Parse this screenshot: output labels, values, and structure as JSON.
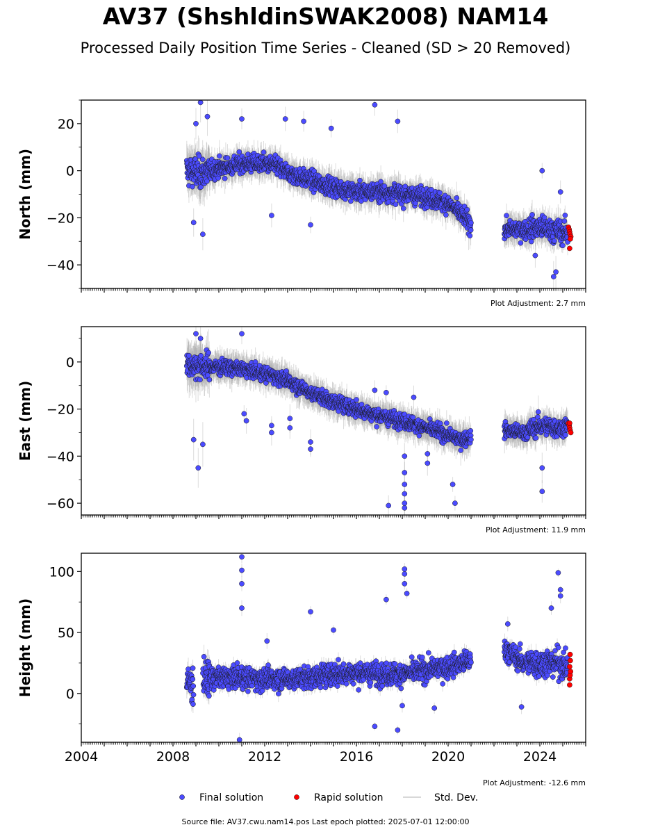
{
  "page": {
    "title": "AV37 (ShshldinSWAK2008) NAM14",
    "subtitle": "Processed Daily Position Time Series - Cleaned (SD > 20 Removed)",
    "footer": "Source file: AV37.cwu.nam14.pos  Last epoch plotted: 2025-07-01 12:00:00"
  },
  "legend": {
    "placement": "bottom-center",
    "items": [
      {
        "label": "Final solution",
        "color": "#4b4bff",
        "kind": "marker"
      },
      {
        "label": "Rapid solution",
        "color": "#ff0000",
        "kind": "marker"
      },
      {
        "label": "Std. Dev.",
        "color": "#cccccc",
        "kind": "line"
      }
    ]
  },
  "chart_data": [
    {
      "type": "scatter",
      "ylabel": "North (mm)",
      "annotation": "Plot Adjustment: 2.7 mm",
      "xlim": [
        2004,
        2026
      ],
      "ylim": [
        -50,
        30
      ],
      "yticks": [
        -40,
        -20,
        0,
        20
      ],
      "x_tick_labels": [],
      "trend": [
        [
          2008.6,
          0
        ],
        [
          2009.3,
          -1
        ],
        [
          2010,
          1
        ],
        [
          2011,
          3
        ],
        [
          2012,
          3
        ],
        [
          2012.5,
          2
        ],
        [
          2013,
          -1
        ],
        [
          2014,
          -4
        ],
        [
          2015,
          -7
        ],
        [
          2016,
          -9
        ],
        [
          2017,
          -9
        ],
        [
          2018,
          -10
        ],
        [
          2019,
          -11
        ],
        [
          2020,
          -14
        ],
        [
          2020.5,
          -18
        ],
        [
          2021,
          -23
        ],
        [
          2022.5,
          -25
        ],
        [
          2023.3,
          -25
        ],
        [
          2024,
          -24
        ],
        [
          2024.9,
          -26
        ],
        [
          2025.4,
          -27
        ]
      ],
      "noise": 3.2,
      "gaps": [
        [
          2021.0,
          2022.45
        ]
      ],
      "outliers": [
        [
          2009.0,
          20
        ],
        [
          2009.2,
          29
        ],
        [
          2009.3,
          -27
        ],
        [
          2009.5,
          23
        ],
        [
          2011.0,
          22
        ],
        [
          2012.9,
          22
        ],
        [
          2013.7,
          21
        ],
        [
          2014.9,
          18
        ],
        [
          2016.8,
          28
        ],
        [
          2017.8,
          21
        ],
        [
          2012.3,
          -19
        ],
        [
          2014.0,
          -23
        ],
        [
          2008.9,
          -22
        ],
        [
          2024.1,
          0
        ],
        [
          2024.9,
          -9
        ],
        [
          2023.8,
          -36
        ],
        [
          2024.6,
          -45
        ],
        [
          2024.7,
          -43
        ]
      ],
      "rapid": [
        [
          2025.25,
          -24
        ],
        [
          2025.28,
          -25
        ],
        [
          2025.3,
          -26
        ],
        [
          2025.32,
          -27
        ],
        [
          2025.35,
          -28
        ],
        [
          2025.3,
          -33
        ],
        [
          2025.33,
          -29
        ]
      ]
    },
    {
      "type": "scatter",
      "ylabel": "East (mm)",
      "annotation": "Plot Adjustment: 11.9 mm",
      "xlim": [
        2004,
        2026
      ],
      "ylim": [
        -65,
        15
      ],
      "yticks": [
        -60,
        -40,
        -20,
        0
      ],
      "x_tick_labels": [],
      "trend": [
        [
          2008.6,
          -1
        ],
        [
          2009.3,
          -2
        ],
        [
          2010,
          -2
        ],
        [
          2011,
          -3
        ],
        [
          2012,
          -5
        ],
        [
          2012.5,
          -6
        ],
        [
          2013,
          -8
        ],
        [
          2014,
          -13
        ],
        [
          2015,
          -17
        ],
        [
          2016,
          -20
        ],
        [
          2017,
          -23
        ],
        [
          2018,
          -25
        ],
        [
          2019,
          -28
        ],
        [
          2020,
          -31
        ],
        [
          2020.5,
          -33
        ],
        [
          2021,
          -32
        ],
        [
          2022.5,
          -29
        ],
        [
          2023.3,
          -30
        ],
        [
          2024,
          -27
        ],
        [
          2024.9,
          -28
        ],
        [
          2025.4,
          -27
        ]
      ],
      "noise": 2.6,
      "gaps": [
        [
          2021.0,
          2022.45
        ]
      ],
      "outliers": [
        [
          2009.0,
          12
        ],
        [
          2009.2,
          10
        ],
        [
          2011.0,
          12
        ],
        [
          2008.9,
          -33
        ],
        [
          2009.1,
          -45
        ],
        [
          2009.3,
          -35
        ],
        [
          2011.1,
          -22
        ],
        [
          2011.2,
          -25
        ],
        [
          2012.3,
          -27
        ],
        [
          2012.3,
          -30
        ],
        [
          2013.1,
          -24
        ],
        [
          2013.1,
          -28
        ],
        [
          2014.0,
          -34
        ],
        [
          2014.0,
          -37
        ],
        [
          2017.4,
          -61
        ],
        [
          2018.1,
          -47
        ],
        [
          2018.1,
          -52
        ],
        [
          2018.1,
          -56
        ],
        [
          2018.1,
          -60
        ],
        [
          2018.1,
          -62
        ],
        [
          2018.1,
          -40
        ],
        [
          2019.1,
          -39
        ],
        [
          2019.1,
          -43
        ],
        [
          2020.2,
          -52
        ],
        [
          2020.3,
          -60
        ],
        [
          2024.1,
          -45
        ],
        [
          2024.1,
          -55
        ],
        [
          2016.8,
          -12
        ],
        [
          2017.3,
          -13
        ],
        [
          2018.5,
          -15
        ]
      ],
      "rapid": [
        [
          2025.25,
          -26
        ],
        [
          2025.28,
          -27
        ],
        [
          2025.3,
          -28
        ],
        [
          2025.32,
          -29
        ],
        [
          2025.35,
          -30
        ],
        [
          2025.3,
          -26
        ]
      ]
    },
    {
      "type": "scatter",
      "ylabel": "Height (mm)",
      "annotation": "Plot Adjustment: -12.6 mm",
      "xlim": [
        2004,
        2026
      ],
      "ylim": [
        -40,
        115
      ],
      "yticks": [
        0,
        50,
        100
      ],
      "x_tick_labels": [
        "2004",
        "2008",
        "2012",
        "2016",
        "2020",
        "2024"
      ],
      "trend": [
        [
          2008.6,
          8
        ],
        [
          2009.3,
          12
        ],
        [
          2010,
          13
        ],
        [
          2011,
          13
        ],
        [
          2012,
          12
        ],
        [
          2013,
          12
        ],
        [
          2014,
          13
        ],
        [
          2015,
          16
        ],
        [
          2016,
          17
        ],
        [
          2017,
          16
        ],
        [
          2018,
          16
        ],
        [
          2019,
          19
        ],
        [
          2020,
          22
        ],
        [
          2021,
          27
        ],
        [
          2022.5,
          36
        ],
        [
          2023.3,
          25
        ],
        [
          2024,
          25
        ],
        [
          2024.9,
          25
        ],
        [
          2025.4,
          18
        ]
      ],
      "noise": 7.5,
      "gaps": [
        [
          2008.9,
          2009.3
        ],
        [
          2021.0,
          2022.45
        ]
      ],
      "outliers": [
        [
          2011.0,
          112
        ],
        [
          2011.0,
          101
        ],
        [
          2011.0,
          90
        ],
        [
          2011.0,
          70
        ],
        [
          2010.9,
          -38
        ],
        [
          2014.0,
          67
        ],
        [
          2016.8,
          -27
        ],
        [
          2017.3,
          77
        ],
        [
          2017.8,
          -30
        ],
        [
          2018.1,
          102
        ],
        [
          2018.1,
          98
        ],
        [
          2018.1,
          90
        ],
        [
          2018.2,
          82
        ],
        [
          2018.0,
          -10
        ],
        [
          2019.4,
          -12
        ],
        [
          2023.2,
          -11
        ],
        [
          2024.8,
          99
        ],
        [
          2024.9,
          85
        ],
        [
          2024.9,
          80
        ],
        [
          2024.5,
          70
        ],
        [
          2012.1,
          43
        ],
        [
          2015.0,
          52
        ],
        [
          2022.6,
          57
        ]
      ],
      "rapid": [
        [
          2025.3,
          7
        ],
        [
          2025.3,
          12
        ],
        [
          2025.32,
          15
        ],
        [
          2025.34,
          18
        ],
        [
          2025.3,
          22
        ],
        [
          2025.33,
          27
        ],
        [
          2025.32,
          32
        ]
      ]
    }
  ]
}
